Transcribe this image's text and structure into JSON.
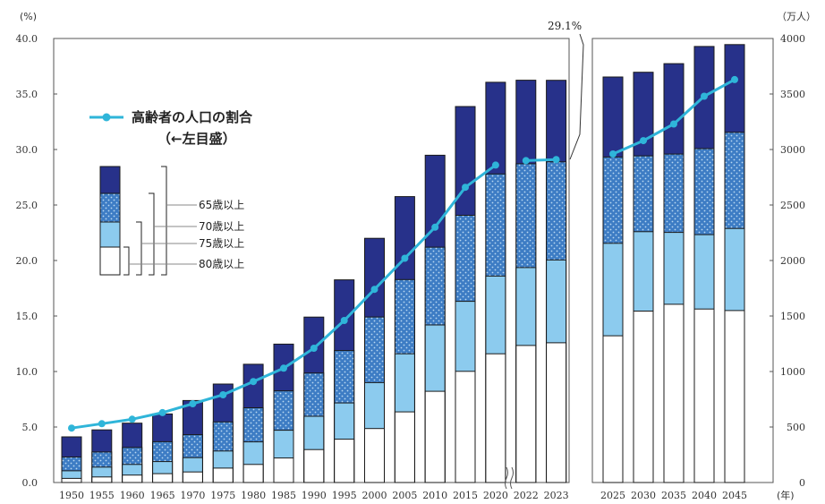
{
  "chart_data": {
    "type": "bar",
    "left_axis": {
      "unit": "(%)",
      "ylim": [
        0,
        40
      ],
      "ticks": [
        "0.0",
        "5.0",
        "10.0",
        "15.0",
        "20.0",
        "25.0",
        "30.0",
        "35.0",
        "40.0"
      ]
    },
    "right_axis": {
      "unit": "（万人）",
      "ylim": [
        0,
        4000
      ],
      "ticks": [
        "0",
        "500",
        "1000",
        "1500",
        "2000",
        "2500",
        "3000",
        "3500",
        "4000"
      ]
    },
    "x_unit": "(年)",
    "categories": [
      "1950",
      "1955",
      "1960",
      "1965",
      "1970",
      "1975",
      "1980",
      "1985",
      "1990",
      "1995",
      "2000",
      "2005",
      "2010",
      "2015",
      "2020",
      "2022",
      "2023",
      "2025",
      "2030",
      "2035",
      "2040",
      "2045"
    ],
    "panel_split_index": 17,
    "break_mark_after": "2020",
    "series": [
      {
        "name": "80歳以上",
        "values": [
          37,
          50,
          67,
          80,
          95,
          130,
          163,
          221,
          297,
          390,
          486,
          636,
          822,
          1002,
          1160,
          1235,
          1259,
          1322,
          1544,
          1606,
          1563,
          1549
        ]
      },
      {
        "name": "75歳以上",
        "values": [
          106,
          139,
          163,
          189,
          224,
          284,
          366,
          471,
          597,
          717,
          900,
          1160,
          1419,
          1632,
          1860,
          1936,
          2005,
          2155,
          2260,
          2253,
          2233,
          2289
        ]
      },
      {
        "name": "70歳以上",
        "values": [
          230,
          275,
          316,
          368,
          431,
          546,
          673,
          826,
          986,
          1189,
          1491,
          1828,
          2120,
          2407,
          2780,
          2872,
          2889,
          2932,
          2943,
          2959,
          3008,
          3155
        ]
      },
      {
        "name": "65歳以上",
        "values": [
          411,
          474,
          535,
          618,
          739,
          887,
          1065,
          1247,
          1490,
          1826,
          2200,
          2576,
          2948,
          3387,
          3606,
          3624,
          3623,
          3653,
          3696,
          3773,
          3928,
          3945
        ]
      }
    ],
    "line": {
      "name": "高齢者の人口の割合",
      "axis_note": "（←左目盛）",
      "values": [
        4.9,
        5.3,
        5.7,
        6.3,
        7.1,
        7.9,
        9.1,
        10.3,
        12.1,
        14.6,
        17.4,
        20.2,
        23.0,
        26.6,
        28.6,
        29.0,
        29.1,
        29.6,
        30.8,
        32.3,
        34.8,
        36.3
      ],
      "color": "#2fb5d9"
    },
    "annotation": "29.1%",
    "age_legend": [
      "65歳以上",
      "70歳以上",
      "75歳以上",
      "80歳以上"
    ],
    "colors": {
      "65": "#27318a",
      "70": "#3d7cc4",
      "75": "#8ccbee",
      "80": "#ffffff",
      "outline": "#1a1a1a"
    }
  }
}
